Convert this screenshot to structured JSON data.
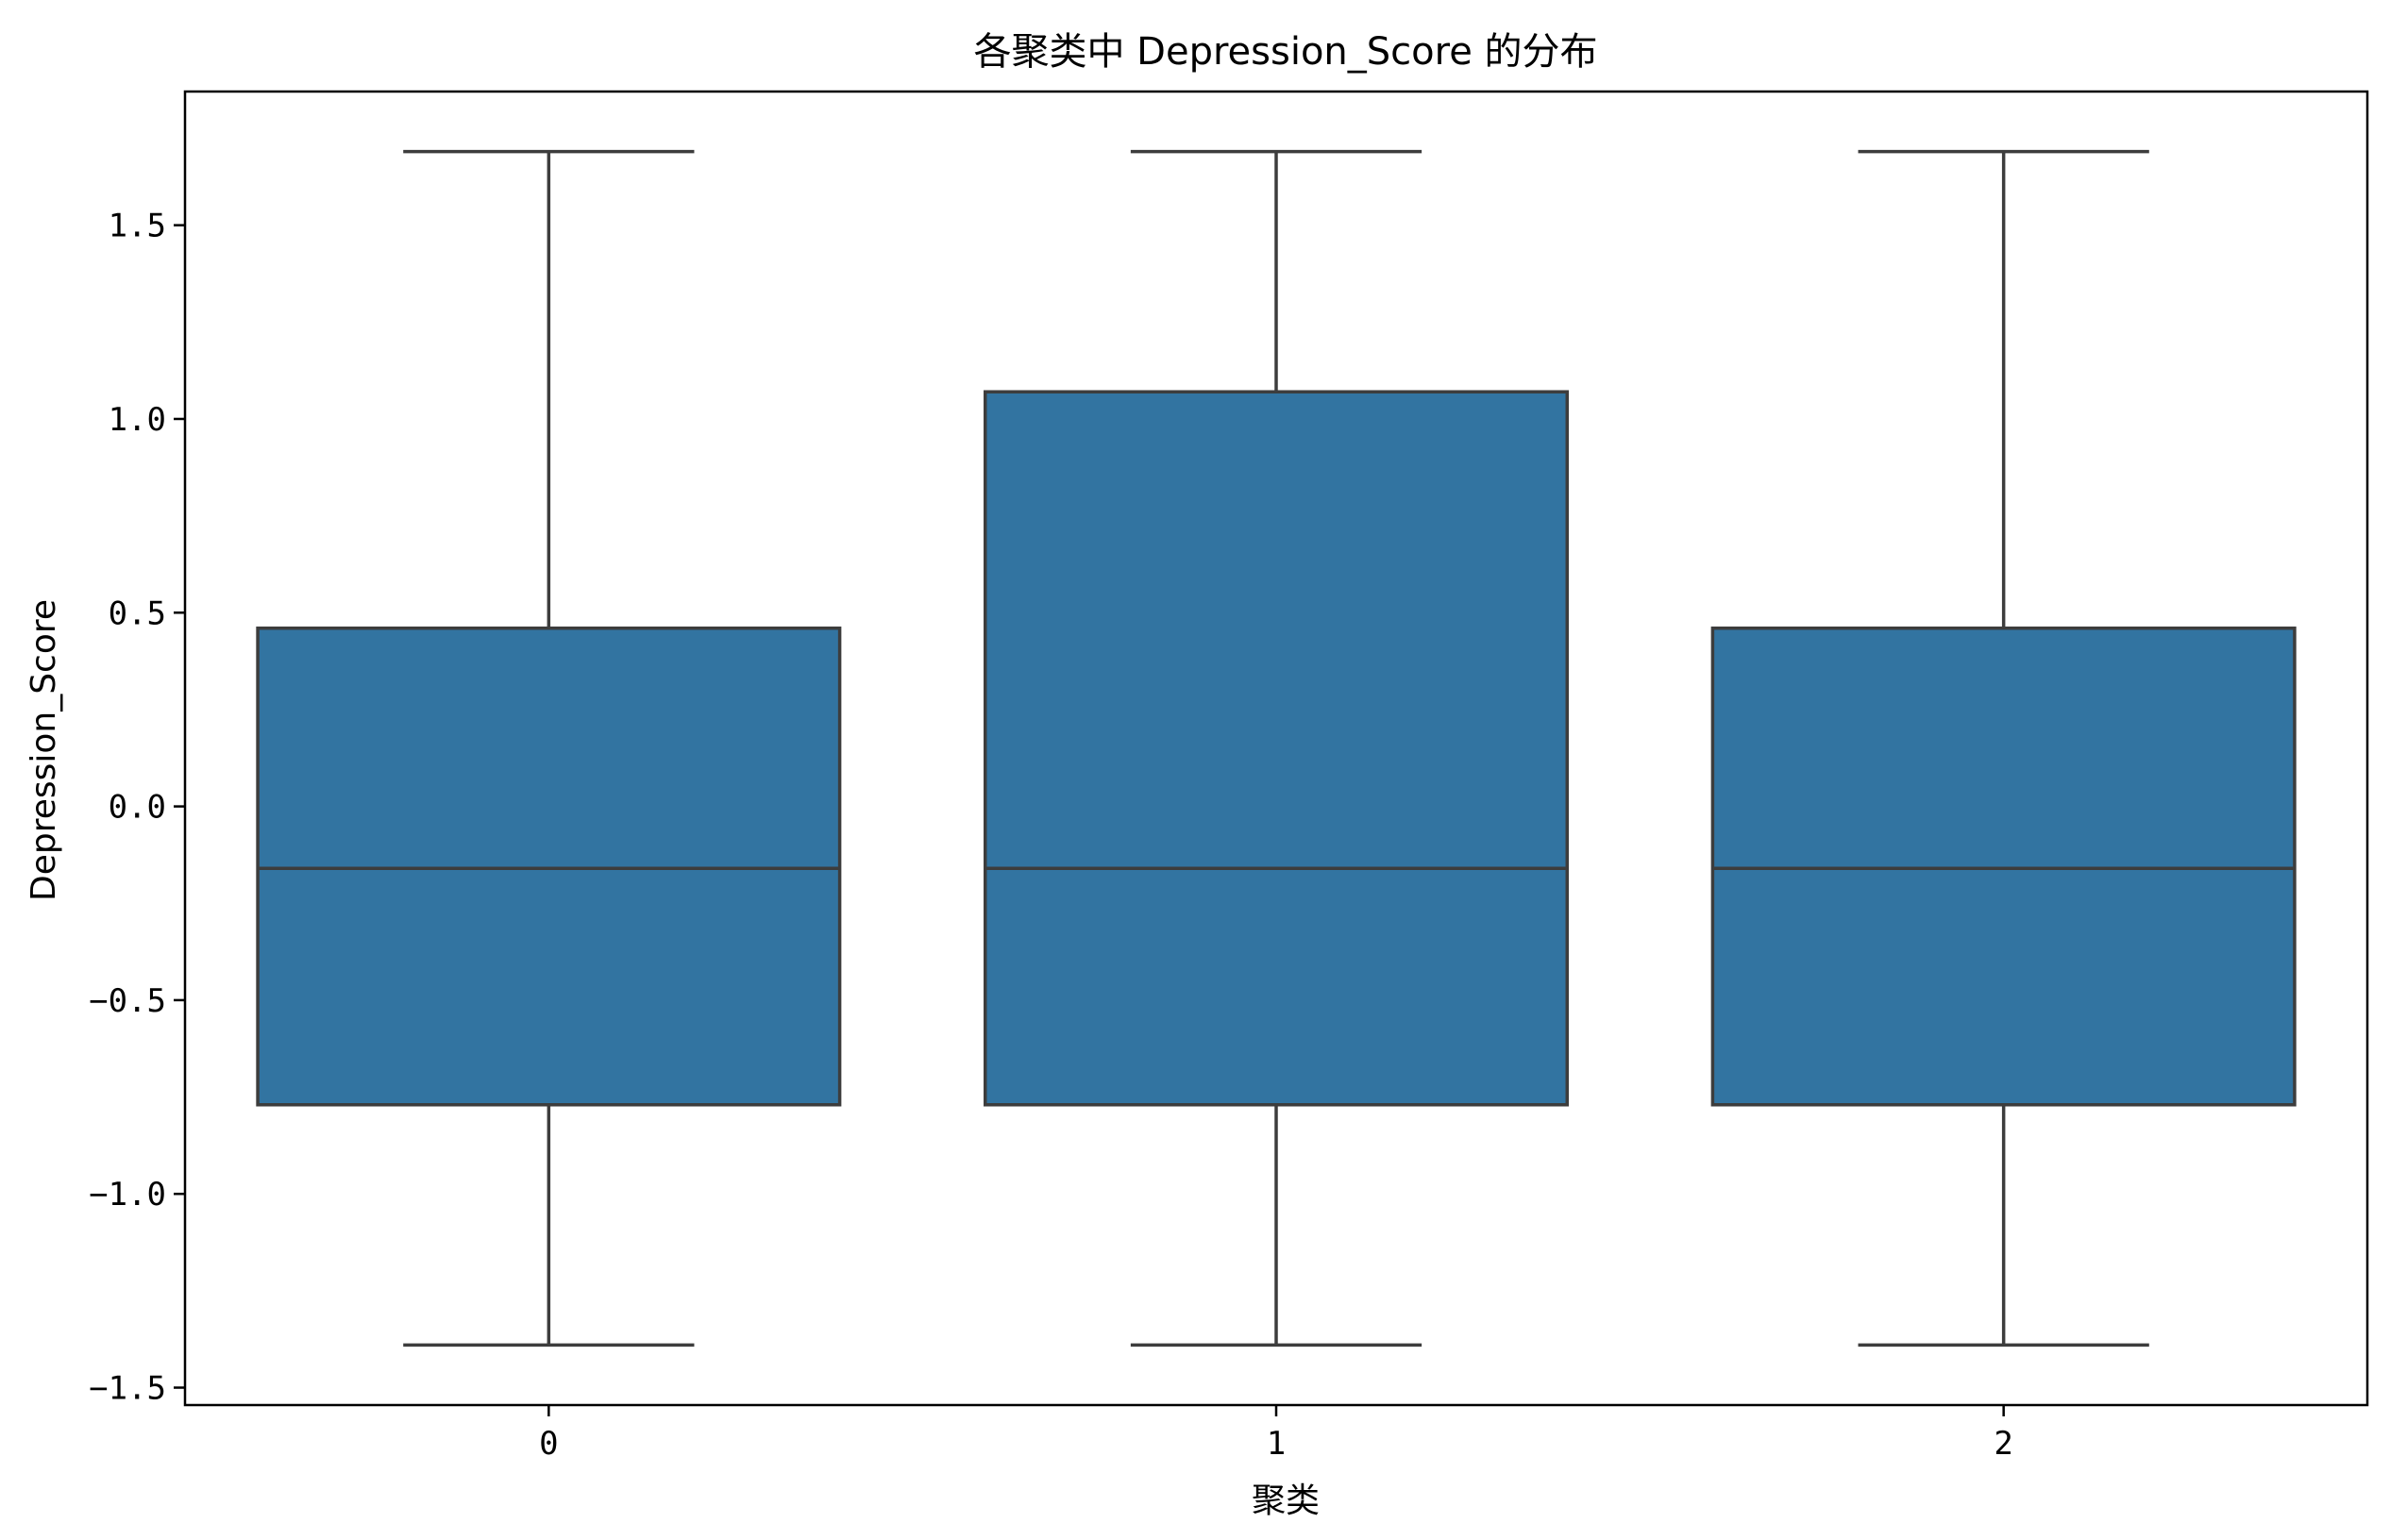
{
  "chart_data": {
    "type": "box",
    "title": "各聚类中 Depression_Score 的分布",
    "xlabel": "聚类",
    "ylabel": "Depression_Score",
    "categories": [
      "0",
      "1",
      "2"
    ],
    "boxes": [
      {
        "category": "0",
        "whisker_low": -1.39,
        "q1": -0.77,
        "median": -0.16,
        "q3": 0.46,
        "whisker_high": 1.69
      },
      {
        "category": "1",
        "whisker_low": -1.39,
        "q1": -0.77,
        "median": -0.16,
        "q3": 1.07,
        "whisker_high": 1.69
      },
      {
        "category": "2",
        "whisker_low": -1.39,
        "q1": -0.77,
        "median": -0.16,
        "q3": 0.46,
        "whisker_high": 1.69
      }
    ],
    "ylim": [
      -1.545,
      1.845
    ],
    "yticks": [
      -1.5,
      -1.0,
      -0.5,
      0.0,
      0.5,
      1.0,
      1.5
    ],
    "ytick_labels": [
      "−1.5",
      "−1.0",
      "−0.5",
      "0.0",
      "0.5",
      "1.0",
      "1.5"
    ],
    "grid": false,
    "box_color": "#3274a1",
    "line_color": "#3d3d3d"
  }
}
